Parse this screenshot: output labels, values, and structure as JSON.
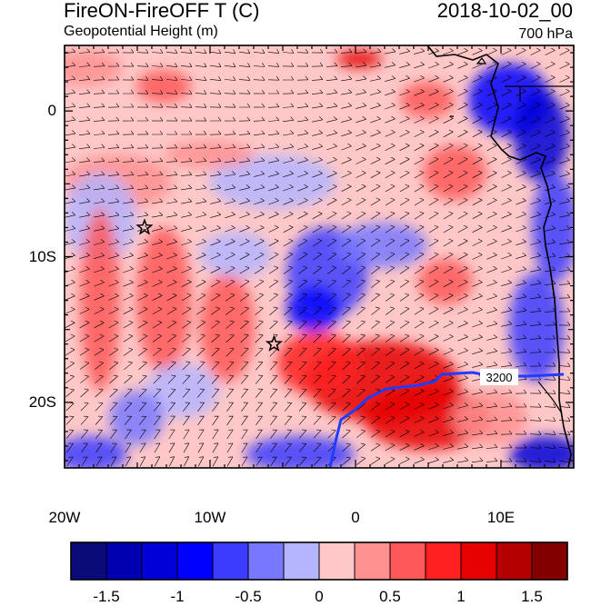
{
  "title": "FireON-FireOFF T (C)",
  "subtitle": "Geopotential Height (m)",
  "datetime": "2018-10-02_00",
  "level": "700 hPa",
  "map": {
    "lon_range": [
      -20,
      15
    ],
    "lat_range": [
      -24.5,
      4.5
    ],
    "x_ticks": [
      {
        "value": -20,
        "label": "20W"
      },
      {
        "value": -10,
        "label": "10W"
      },
      {
        "value": 0,
        "label": "0"
      },
      {
        "value": 10,
        "label": "10E"
      }
    ],
    "y_ticks": [
      {
        "value": 0,
        "label": "0"
      },
      {
        "value": -10,
        "label": "10S"
      },
      {
        "value": -20,
        "label": "20S"
      }
    ],
    "contour": {
      "level": 3200,
      "label": "3200",
      "color": "#1f3cff"
    },
    "markers": [
      {
        "name": "star",
        "lon": -14.5,
        "lat": -8
      },
      {
        "name": "star",
        "lon": -5.6,
        "lat": -16
      }
    ]
  },
  "colorbar": {
    "labels": [
      "-1.5",
      "-1",
      "-0.5",
      "0",
      "0.5",
      "1",
      "1.5"
    ],
    "colors": [
      "#0a0a78",
      "#0000b0",
      "#0000d8",
      "#0000ff",
      "#3c3cff",
      "#7878ff",
      "#b4b4ff",
      "#ffc8c8",
      "#ff9090",
      "#ff5858",
      "#ff2020",
      "#e60000",
      "#b40000",
      "#820000"
    ]
  }
}
